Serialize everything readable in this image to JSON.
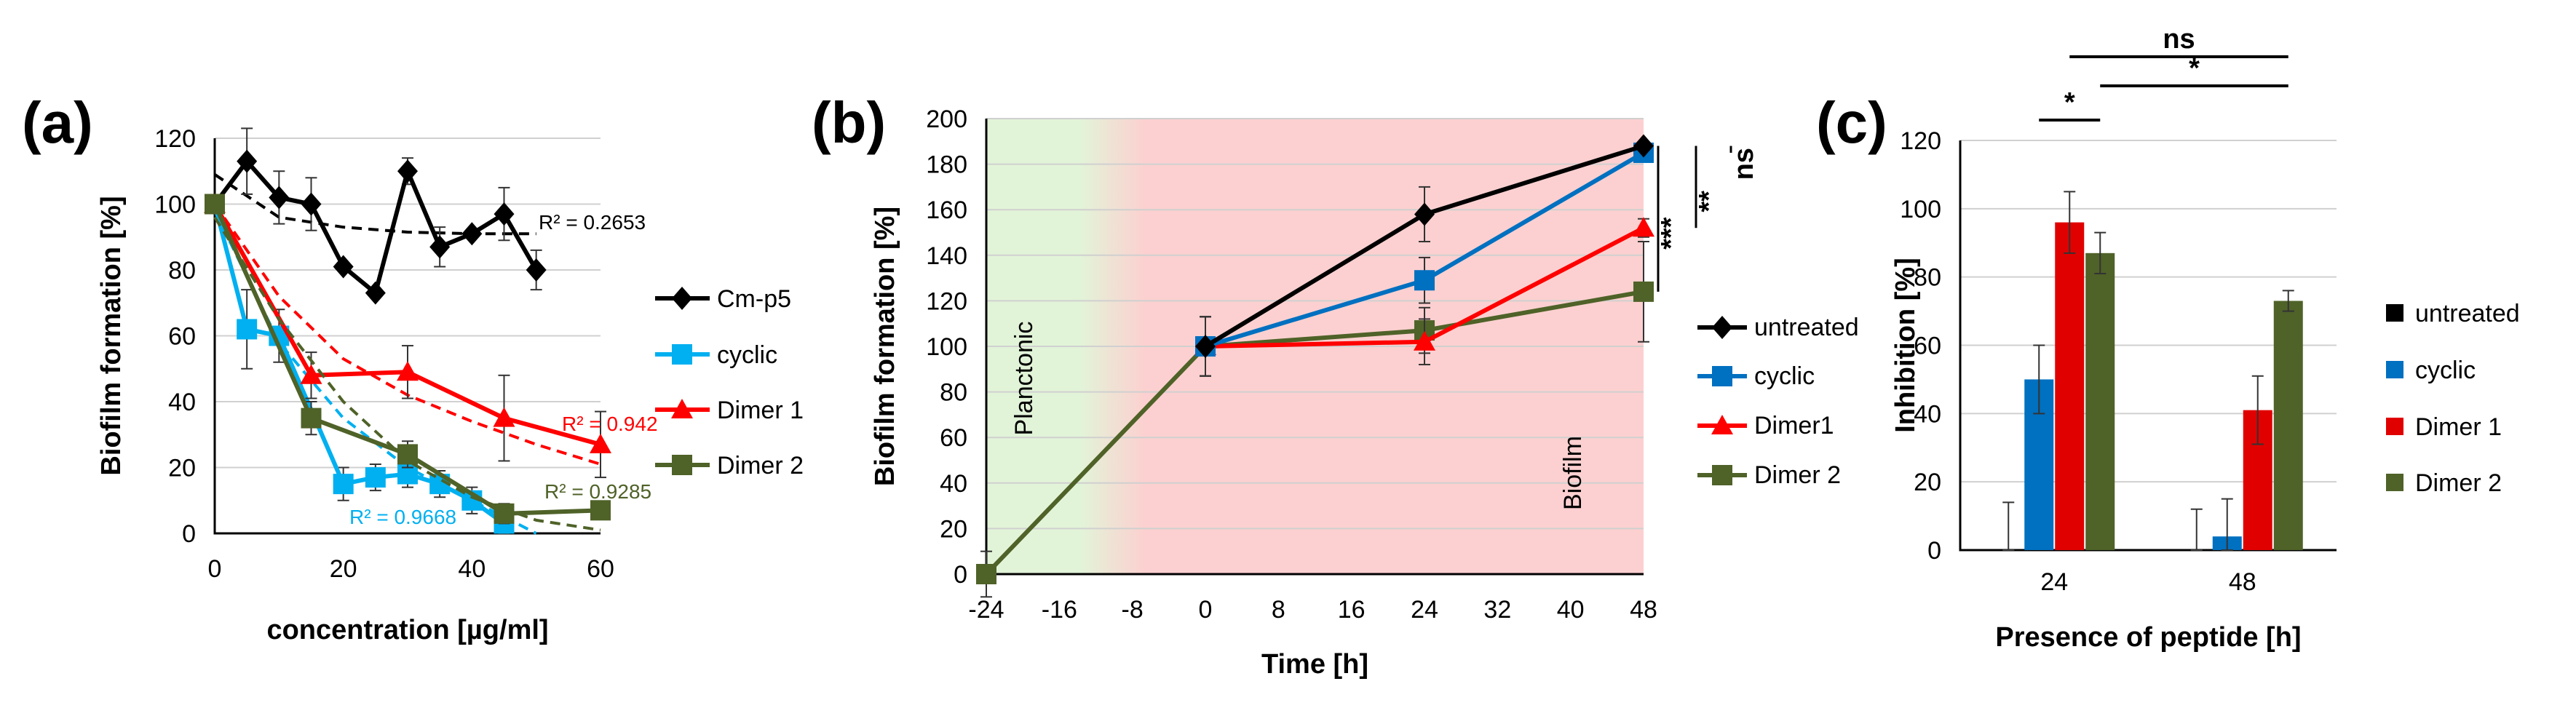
{
  "chart_data": [
    {
      "panel": "(a)",
      "type": "line",
      "xlabel": "concentration [µg/ml]",
      "ylabel": "Biofilm formation [%]",
      "xlim": [
        0,
        60
      ],
      "ylim": [
        0,
        120
      ],
      "xticks": [
        "0",
        "20",
        "40",
        "60"
      ],
      "yticks": [
        "0",
        "20",
        "40",
        "60",
        "80",
        "100",
        "120"
      ],
      "series": [
        {
          "name": "Cm-p5",
          "color": "#000000",
          "marker": "diamond",
          "x": [
            0,
            5,
            10,
            15,
            20,
            25,
            30,
            35,
            40,
            45,
            50
          ],
          "y": [
            100,
            113,
            102,
            100,
            81,
            73,
            110,
            87,
            91,
            97,
            80
          ],
          "err": [
            0,
            10,
            8,
            8,
            0,
            0,
            4,
            6,
            0,
            8,
            6
          ],
          "trend": {
            "x": [
              0,
              10,
              20,
              30,
              40,
              50
            ],
            "y": [
              109,
              96,
              93,
              91.5,
              91,
              91
            ]
          },
          "r2": "R² = 0.2653",
          "r2_color": "#000000"
        },
        {
          "name": "cyclic",
          "color": "#00b0f0",
          "marker": "square",
          "x": [
            0,
            5,
            10,
            20,
            25,
            30,
            35,
            40,
            45
          ],
          "y": [
            100,
            62,
            60,
            15,
            17,
            18,
            15,
            10,
            3
          ],
          "err": [
            0,
            12,
            8,
            5,
            4,
            4,
            4,
            4,
            3
          ],
          "trend": {
            "x": [
              0,
              10,
              20,
              30,
              40,
              50
            ],
            "y": [
              98,
              58,
              35,
              20,
              10,
              0
            ]
          },
          "r2": "R² = 0.9668",
          "r2_color": "#00b0f0"
        },
        {
          "name": "Dimer 1",
          "color": "#ff0000",
          "marker": "triangle",
          "x": [
            0,
            15,
            30,
            45,
            60
          ],
          "y": [
            100,
            48,
            49,
            35,
            27
          ],
          "err": [
            0,
            7,
            8,
            13,
            10
          ],
          "trend": {
            "x": [
              0,
              10,
              20,
              30,
              40,
              50,
              60
            ],
            "y": [
              100,
              72,
              53,
              42,
              34,
              27,
              21
            ]
          },
          "r2": "R² = 0.942",
          "r2_color": "#ff0000"
        },
        {
          "name": "Dimer 2",
          "color": "#4f6228",
          "marker": "square",
          "x": [
            0,
            15,
            30,
            45,
            60
          ],
          "y": [
            100,
            35,
            24,
            6,
            7
          ],
          "err": [
            0,
            5,
            4,
            3,
            0
          ],
          "trend": {
            "x": [
              0,
              10,
              20,
              30,
              40,
              50,
              60
            ],
            "y": [
              96,
              65,
              40,
              22,
              11,
              4,
              1
            ]
          },
          "r2": "R² = 0.9285",
          "r2_color": "#4f6228"
        }
      ]
    },
    {
      "panel": "(b)",
      "type": "line",
      "xlabel": "Time [h]",
      "ylabel": "Biofilm formation [%]",
      "xlim": [
        -24,
        48
      ],
      "ylim": [
        0,
        200
      ],
      "xticks": [
        "-24",
        "-16",
        "-8",
        "0",
        "8",
        "16",
        "24",
        "32",
        "40",
        "48"
      ],
      "yticks": [
        "0",
        "20",
        "40",
        "60",
        "80",
        "100",
        "120",
        "140",
        "160",
        "180",
        "200"
      ],
      "regions": [
        {
          "label": "Planctonic",
          "x": [
            -24,
            -8
          ],
          "color": "#e2f4d8"
        },
        {
          "label": "Biofilm",
          "x": [
            -8,
            48
          ],
          "color": "#fcd0d0"
        }
      ],
      "significance": [
        "***",
        "**",
        "ns"
      ],
      "series": [
        {
          "name": "untreated",
          "color": "#000000",
          "marker": "diamond",
          "x": [
            0,
            24,
            48
          ],
          "y": [
            100,
            158,
            188
          ],
          "err": [
            13,
            12,
            0
          ]
        },
        {
          "name": "cyclic",
          "color": "#0070c0",
          "marker": "square",
          "x": [
            0,
            24,
            48
          ],
          "y": [
            100,
            129,
            185
          ],
          "err": [
            13,
            10,
            0
          ]
        },
        {
          "name": "Dimer1",
          "color": "#ff0000",
          "marker": "triangle",
          "x": [
            0,
            24,
            48
          ],
          "y": [
            100,
            102,
            152
          ],
          "err": [
            13,
            10,
            4
          ]
        },
        {
          "name": "Dimer 2",
          "color": "#4f6228",
          "marker": "square",
          "x": [
            -24,
            0,
            24,
            48
          ],
          "y": [
            0,
            100,
            107,
            124
          ],
          "err": [
            10,
            13,
            10,
            22
          ]
        }
      ]
    },
    {
      "panel": "(c)",
      "type": "bar",
      "xlabel": "Presence of peptide [h]",
      "ylabel": "Inhibition [%]",
      "ylim": [
        0,
        120
      ],
      "yticks": [
        "0",
        "20",
        "40",
        "60",
        "80",
        "100",
        "120"
      ],
      "categories": [
        "24",
        "48"
      ],
      "significance": [
        {
          "label": "*",
          "from": 1,
          "to": 3
        },
        {
          "label": "*",
          "from": 3,
          "to": 7
        },
        {
          "label": "ns",
          "from": 2,
          "to": 7
        }
      ],
      "series": [
        {
          "name": "untreated",
          "color": "#000000",
          "values": [
            0,
            0
          ],
          "err": [
            14,
            12
          ]
        },
        {
          "name": "cyclic",
          "color": "#0070c0",
          "values": [
            50,
            4
          ],
          "err": [
            10,
            11
          ]
        },
        {
          "name": "Dimer 1",
          "color": "#e00000",
          "values": [
            96,
            41
          ],
          "err": [
            9,
            10
          ]
        },
        {
          "name": "Dimer 2",
          "color": "#4f6228",
          "values": [
            87,
            73
          ],
          "err": [
            6,
            3
          ]
        }
      ]
    }
  ]
}
